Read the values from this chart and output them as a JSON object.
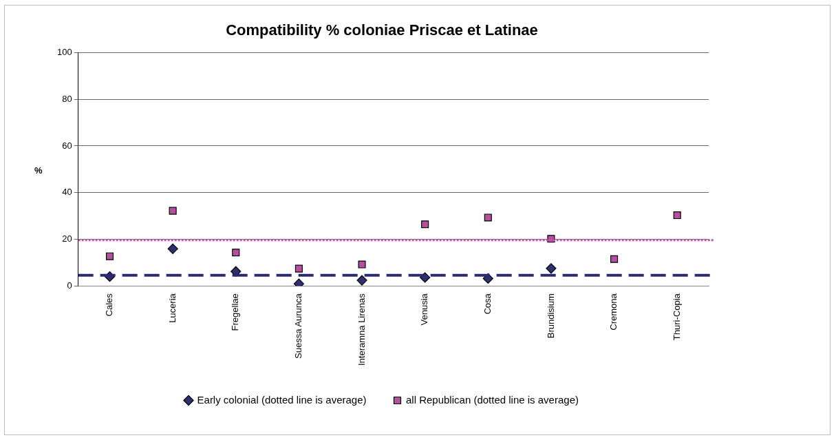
{
  "chart_data": {
    "type": "scatter",
    "title": "Compatibility % coloniae Priscae et Latinae",
    "ylabel": "%",
    "categories": [
      "Cales",
      "Luceria",
      "Fregellae",
      "Suessa Aurunca",
      "Interamna Lirenas",
      "Venusia",
      "Cosa",
      "Brundisium",
      "Cremona",
      "Thuri-Copia"
    ],
    "series": [
      {
        "name": "Early colonial (dotted line is average)",
        "color": "#2e2f6e",
        "marker": "diamond",
        "values": [
          4.0,
          15.9,
          6.2,
          0.9,
          2.4,
          3.6,
          3.2,
          7.5,
          null,
          null
        ]
      },
      {
        "name": "all Republican (dotted line is average)",
        "color": "#b54fa0",
        "marker": "square",
        "values": [
          12.7,
          32.2,
          14.3,
          7.4,
          9.2,
          26.4,
          29.3,
          20.2,
          11.5,
          30.3
        ]
      }
    ],
    "ref_lines": [
      {
        "axis": "y",
        "value": 4.6,
        "color": "#282a74",
        "line_style": "dashed"
      },
      {
        "axis": "y",
        "value": 19.6,
        "color": "#c850b0",
        "line_style": "dotted"
      }
    ],
    "ylim": [
      0,
      100
    ],
    "yticks": [
      0,
      20,
      40,
      60,
      80,
      100
    ],
    "grid": "y",
    "legend": "bottom"
  }
}
